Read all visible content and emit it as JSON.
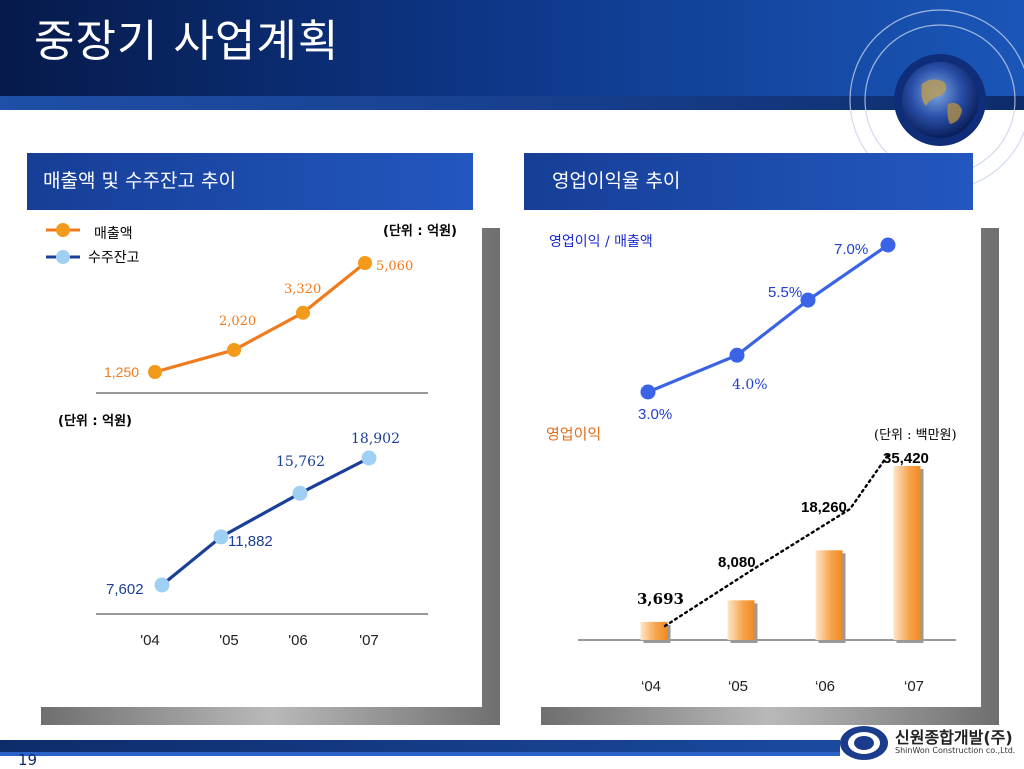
{
  "slide": {
    "title": "중장기 사업계획",
    "page_number": "19",
    "logo_main": "신원종합개발(주)",
    "logo_sub": "ShinWon Construction co.,Ltd."
  },
  "left_panel": {
    "heading": "매출액 및 수주잔고 추이",
    "unit_top": "(단위 : 억원)",
    "unit_bottom": "(단위 : 억원)",
    "legend": [
      "매출액",
      "수주잔고"
    ]
  },
  "right_panel": {
    "heading": "영업이익율  추이",
    "ratio_label": "영업이익 / 매출액",
    "profit_label": "영업이익",
    "unit": "(단위 : 백만원)"
  },
  "colors": {
    "sales": "#f07a1e",
    "sales_marker": "#f39a1a",
    "backlog": "#1a3f99",
    "backlog_marker": "#9fd0f3",
    "ratio": "#3a63e6",
    "bar_light": "#fde0bf",
    "bar_dark": "#f3922e"
  },
  "chart_data": [
    {
      "type": "line",
      "categories": [
        "'04",
        "'05",
        "'06",
        "'07"
      ],
      "series": [
        {
          "name": "매출액",
          "values": [
            1250,
            2020,
            3320,
            5060
          ],
          "labels": [
            "1,250",
            "2,020",
            "3,320",
            "5,060"
          ]
        }
      ]
    },
    {
      "type": "line",
      "categories": [
        "'04",
        "'05",
        "'06",
        "'07"
      ],
      "series": [
        {
          "name": "수주잔고",
          "values": [
            7602,
            11882,
            15762,
            18902
          ],
          "labels": [
            "7,602",
            "11,882",
            "15,762",
            "18,902"
          ]
        }
      ]
    },
    {
      "type": "line",
      "categories": [
        "‘04",
        "‘05",
        "‘06",
        "‘07"
      ],
      "series": [
        {
          "name": "영업이익 / 매출액",
          "values": [
            3.0,
            4.0,
            5.5,
            7.0
          ],
          "labels": [
            "3.0%",
            "4.0%",
            "5.5%",
            "7.0%"
          ]
        }
      ]
    },
    {
      "type": "bar",
      "categories": [
        "‘04",
        "‘05",
        "‘06",
        "‘07"
      ],
      "series": [
        {
          "name": "영업이익",
          "values": [
            3693,
            8080,
            18260,
            35420
          ],
          "labels": [
            "3,693",
            "8,080",
            "18,260",
            "35,420"
          ]
        }
      ]
    }
  ]
}
